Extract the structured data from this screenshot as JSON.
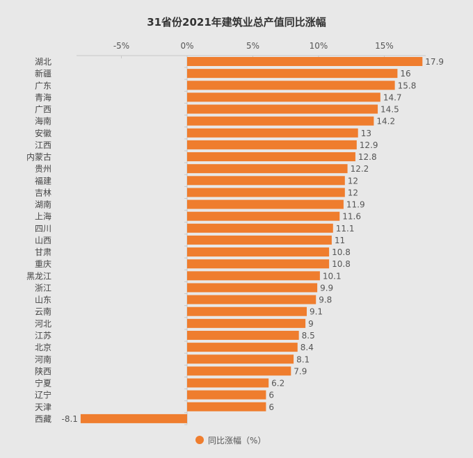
{
  "chart_data": {
    "type": "bar",
    "orientation": "horizontal",
    "title": "31省份2021年建筑业总产值同比涨幅",
    "categories": [
      "湖北",
      "新疆",
      "广东",
      "青海",
      "广西",
      "海南",
      "安徽",
      "江西",
      "内蒙古",
      "贵州",
      "福建",
      "吉林",
      "湖南",
      "上海",
      "四川",
      "山西",
      "甘肃",
      "重庆",
      "黑龙江",
      "浙江",
      "山东",
      "云南",
      "河北",
      "江苏",
      "北京",
      "河南",
      "陕西",
      "宁夏",
      "辽宁",
      "天津",
      "西藏"
    ],
    "series": [
      {
        "name": "同比涨幅（%）",
        "values": [
          17.9,
          16,
          15.8,
          14.7,
          14.5,
          14.2,
          13,
          12.9,
          12.8,
          12.2,
          12,
          12,
          11.9,
          11.6,
          11.1,
          11,
          10.8,
          10.8,
          10.1,
          9.9,
          9.8,
          9.1,
          9,
          8.5,
          8.4,
          8.1,
          7.9,
          6.2,
          6,
          6,
          -8.1
        ]
      }
    ],
    "xlim": [
      -9,
      18
    ],
    "xticks": [
      -5,
      0,
      5,
      10,
      15
    ],
    "xtick_labels": [
      "-5%",
      "0%",
      "5%",
      "10%",
      "15%"
    ],
    "xaxis_position": "top",
    "grid": false,
    "legend": "bottom",
    "bar_color": "#ef7d2e",
    "background": "#e8e8e8"
  }
}
